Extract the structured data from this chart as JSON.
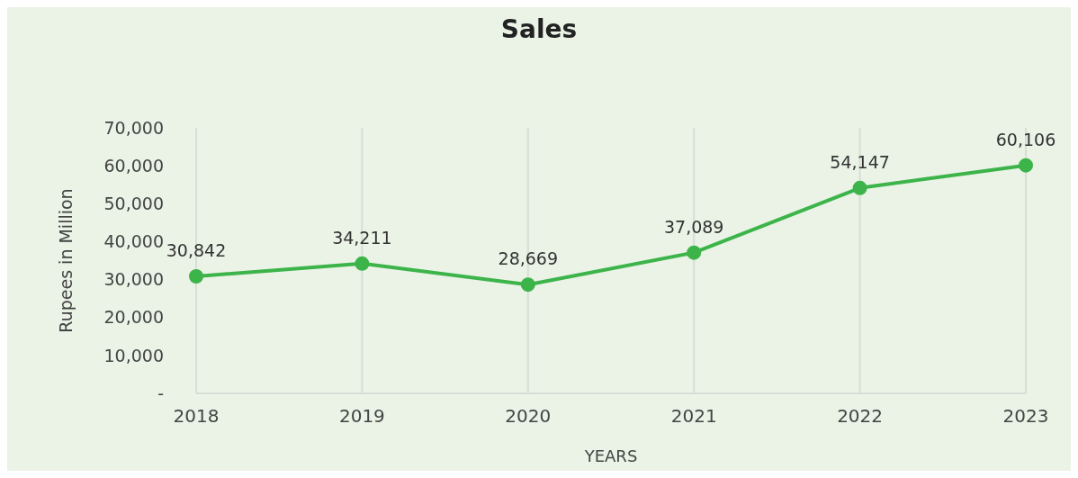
{
  "chart_data": {
    "type": "line",
    "title": "Sales",
    "xlabel": "YEARS",
    "ylabel": "Rupees in Million",
    "categories": [
      "2018",
      "2019",
      "2020",
      "2021",
      "2022",
      "2023"
    ],
    "series": [
      {
        "color": "#3cb44a",
        "values": [
          30842,
          34211,
          28669,
          37089,
          54147,
          60106
        ],
        "value_labels": [
          "30,842",
          "34,211",
          "28,669",
          "37,089",
          "54,147",
          "60,106"
        ]
      }
    ],
    "ylim": [
      0,
      70000
    ],
    "yticks": [
      {
        "value": 0,
        "label": "-"
      },
      {
        "value": 10000,
        "label": "10,000"
      },
      {
        "value": 20000,
        "label": "20,000"
      },
      {
        "value": 30000,
        "label": "30,000"
      },
      {
        "value": 40000,
        "label": "40,000"
      },
      {
        "value": 50000,
        "label": "50,000"
      },
      {
        "value": 60000,
        "label": "60,000"
      },
      {
        "value": 70000,
        "label": "70,000"
      }
    ],
    "grid": "x",
    "marker": "circle",
    "line_style": "solid"
  }
}
